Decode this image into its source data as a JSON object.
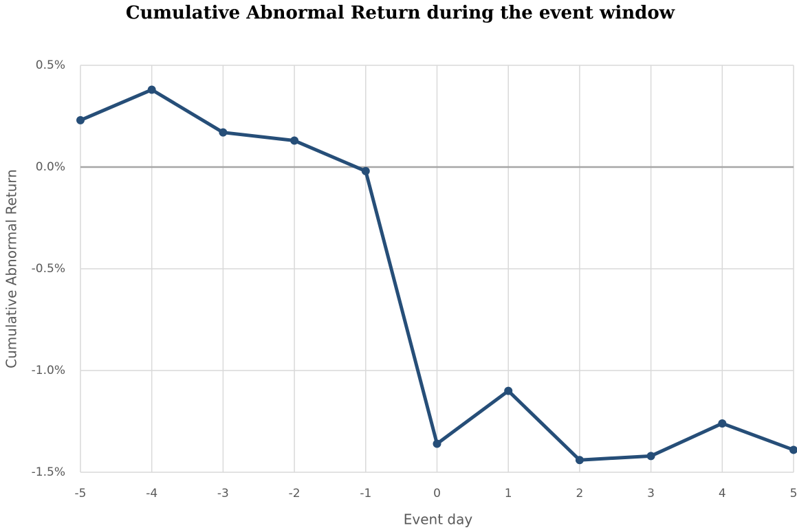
{
  "chart_data": {
    "type": "line",
    "title": "Cumulative Abnormal Return during the event window",
    "x_label": "Event day",
    "y_label": "Cumulative Abnormal Return",
    "x": [
      -5,
      -4,
      -3,
      -2,
      -1,
      0,
      1,
      2,
      3,
      4,
      5
    ],
    "values": [
      0.23,
      0.38,
      0.17,
      0.13,
      -0.02,
      -1.36,
      -1.1,
      -1.44,
      -1.42,
      -1.26,
      -1.39
    ],
    "color": "#264e78",
    "xlim": [
      -5,
      5
    ],
    "xticks": [
      -5,
      -4,
      -3,
      -2,
      -1,
      0,
      1,
      2,
      3,
      4,
      5
    ],
    "ylim": [
      -1.5,
      0.5
    ],
    "yticks": [
      {
        "value": -1.5,
        "label": "-1.5%"
      },
      {
        "value": -1.0,
        "label": "-1.0%"
      },
      {
        "value": -0.5,
        "label": "-0.5%"
      },
      {
        "value": 0.0,
        "label": "0.0%"
      },
      {
        "value": 0.5,
        "label": "0.5%"
      }
    ],
    "grid": true
  }
}
